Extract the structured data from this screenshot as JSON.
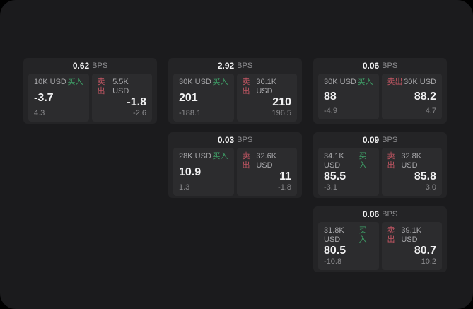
{
  "labels": {
    "bps_unit": "BPS",
    "buy": "买入",
    "sell": "卖出"
  },
  "colors": {
    "buy": "#3fa369",
    "sell": "#c25663",
    "surface": "#1b1b1d",
    "card-bg": "#242426",
    "panel-bg": "#2c2c2e"
  },
  "cards": [
    {
      "bps": "0.62",
      "buy": {
        "amount": "10K USD",
        "price": "-3.7",
        "change": "4.3"
      },
      "sell": {
        "amount": "5.5K USD",
        "price": "-1.8",
        "change": "-2.6"
      }
    },
    {
      "bps": "2.92",
      "buy": {
        "amount": "30K USD",
        "price": "201",
        "change": "-188.1"
      },
      "sell": {
        "amount": "30.1K USD",
        "price": "210",
        "change": "196.5"
      }
    },
    {
      "bps": "0.06",
      "buy": {
        "amount": "30K USD",
        "price": "88",
        "change": "-4.9"
      },
      "sell": {
        "amount": "30K USD",
        "price": "88.2",
        "change": "4.7"
      }
    },
    {
      "bps": "0.03",
      "buy": {
        "amount": "28K USD",
        "price": "10.9",
        "change": "1.3"
      },
      "sell": {
        "amount": "32.6K USD",
        "price": "11",
        "change": "-1.8"
      }
    },
    {
      "bps": "0.09",
      "buy": {
        "amount": "34.1K USD",
        "price": "85.5",
        "change": "-3.1"
      },
      "sell": {
        "amount": "32.8K USD",
        "price": "85.8",
        "change": "3.0"
      }
    },
    {
      "bps": "0.06",
      "buy": {
        "amount": "31.8K USD",
        "price": "80.5",
        "change": "-10.8"
      },
      "sell": {
        "amount": "39.1K USD",
        "price": "80.7",
        "change": "10.2"
      }
    }
  ]
}
